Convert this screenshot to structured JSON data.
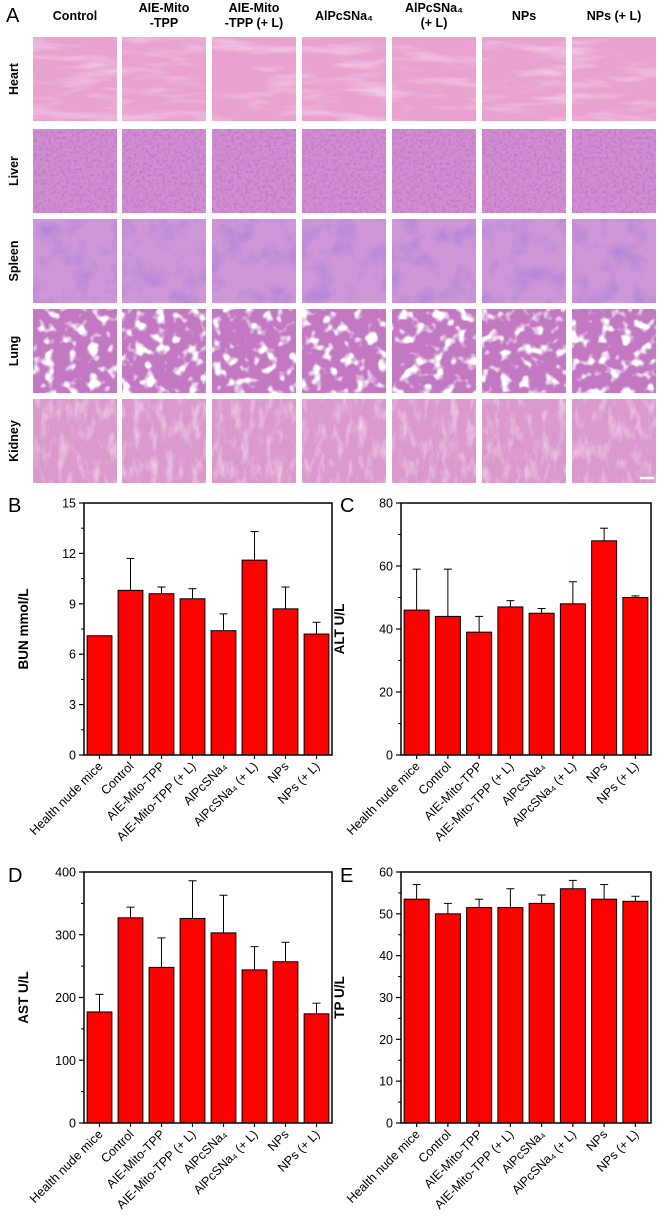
{
  "panel_a": {
    "letter": "A",
    "columns": [
      {
        "line1": "Control",
        "line2": ""
      },
      {
        "line1": "AIE-Mito",
        "line2": "-TPP"
      },
      {
        "line1": "AIE-Mito",
        "line2": "-TPP (+ L)"
      },
      {
        "line1": "AlPcSNa₄",
        "line2": ""
      },
      {
        "line1": "AlPcSNa₄",
        "line2": "(+ L)"
      },
      {
        "line1": "NPs",
        "line2": ""
      },
      {
        "line1": "NPs (+ L)",
        "line2": ""
      }
    ],
    "rows": [
      "Heart",
      "Liver",
      "Spleen",
      "Lung",
      "Kidney"
    ]
  },
  "colors": {
    "bar": "#ff0000",
    "axis": "#000000"
  },
  "chart_data": [
    {
      "panel": "B",
      "type": "bar",
      "ylabel": "BUN mmol/L",
      "categories": [
        "Health nude mice",
        "Control",
        "AIE-Mito-TPP",
        "AIE-Mito-TPP (+ L)",
        "AlPcSNa₄",
        "AlPcSNa₄ (+ L)",
        "NPs",
        "NPs (+ L)"
      ],
      "values": [
        7.1,
        9.8,
        9.6,
        9.3,
        7.4,
        11.6,
        8.7,
        7.2
      ],
      "errors": [
        0.0,
        1.9,
        0.4,
        0.6,
        1.0,
        1.7,
        1.3,
        0.7
      ],
      "ylim": [
        0,
        15
      ],
      "yticks": [
        0,
        3,
        6,
        9,
        12,
        15
      ]
    },
    {
      "panel": "C",
      "type": "bar",
      "ylabel": "ALT U/L",
      "categories": [
        "Health nude mice",
        "Control",
        "AIE-Mito-TPP",
        "AIE-Mito-TPP (+ L)",
        "AlPcSNa₄",
        "AlPcSNa₄ (+ L)",
        "NPs",
        "NPs (+ L)"
      ],
      "values": [
        46,
        44,
        39,
        47,
        45,
        48,
        68,
        50
      ],
      "errors": [
        13,
        15,
        5,
        2,
        1.5,
        7,
        4,
        0.5
      ],
      "ylim": [
        0,
        80
      ],
      "yticks": [
        0,
        20,
        40,
        60,
        80
      ]
    },
    {
      "panel": "D",
      "type": "bar",
      "ylabel": "AST U/L",
      "categories": [
        "Health nude mice",
        "Control",
        "AIE-Mito-TPP",
        "AIE-Mito-TPP (+ L)",
        "AlPcSNa₄",
        "AlPcSNa₄ (+ L)",
        "NPs",
        "NPs (+ L)"
      ],
      "values": [
        177,
        327,
        248,
        326,
        303,
        244,
        257,
        174
      ],
      "errors": [
        28,
        17,
        47,
        60,
        60,
        37,
        31,
        17
      ],
      "ylim": [
        0,
        400
      ],
      "yticks": [
        0,
        100,
        200,
        300,
        400
      ]
    },
    {
      "panel": "E",
      "type": "bar",
      "ylabel": "TP U/L",
      "categories": [
        "Health nude mice",
        "Control",
        "AIE-Mito-TPP",
        "AIE-Mito-TPP (+ L)",
        "AlPcSNa₄",
        "AlPcSNa₄ (+ L)",
        "NPs",
        "NPs (+ L)"
      ],
      "values": [
        53.5,
        50,
        51.5,
        51.5,
        52.5,
        56,
        53.5,
        53
      ],
      "errors": [
        3.5,
        2.5,
        2,
        4.5,
        2,
        2,
        3.5,
        1.2
      ],
      "ylim": [
        0,
        60
      ],
      "yticks": [
        0,
        10,
        20,
        30,
        40,
        50,
        60
      ]
    }
  ]
}
